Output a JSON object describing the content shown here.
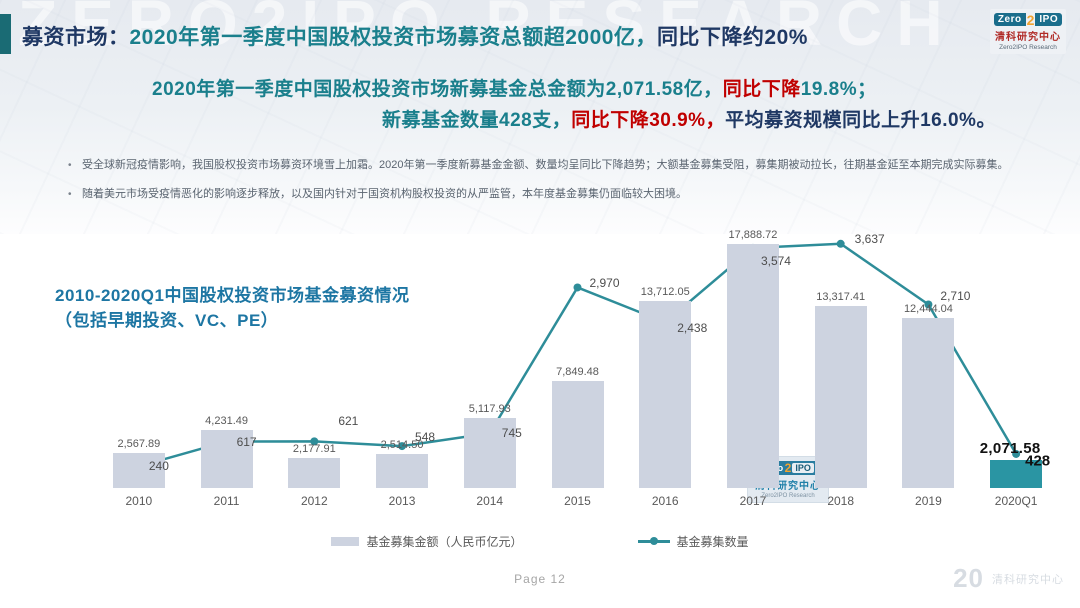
{
  "page": {
    "watermark": "ZERO2IPO RESEARCH",
    "title_prefix": "募资市场：",
    "title_main": "2020年第一季度中国股权投资市场募资总额超2000亿，",
    "title_suffix": "同比下降约20%",
    "footer_page": "Page 12",
    "footer_brand_num": "20",
    "footer_brand_text": "清科研究中心"
  },
  "logo": {
    "zero": "Zero",
    "two": "2",
    "ipo": "IPO",
    "cn": "清科研究中心",
    "en": "Zero2IPO Research"
  },
  "subtitle": {
    "line1": [
      {
        "text": "2020年第一季度中国股权投资市场新募基金总金额为2,071.58亿，",
        "color": "teal"
      },
      {
        "text": "同比下降",
        "color": "red"
      },
      {
        "text": "19.8%",
        "color": "teal"
      },
      {
        "text": "；",
        "color": "teal"
      }
    ],
    "line2": [
      {
        "text": "新募基金数量428支，",
        "color": "teal"
      },
      {
        "text": "同比下降30.9%，",
        "color": "red"
      },
      {
        "text": "平均募资规模同比上升16.0%。",
        "color": "navy"
      }
    ]
  },
  "bullets": [
    "受全球新冠疫情影响，我国股权投资市场募资环境雪上加霜。2020年第一季度新募基金金额、数量均呈同比下降趋势；大额基金募集受阻，募集期被动拉长，往期基金延至本期完成实际募集。",
    "随着美元市场受疫情恶化的影响逐步释放，以及国内针对于国资机构股权投资的从严监管，本年度基金募集仍面临较大困境。"
  ],
  "chart_data": {
    "type": "bar",
    "title": "2010-2020Q1中国股权投资市场基金募资情况",
    "subtitle": "（包括早期投资、VC、PE）",
    "categories": [
      "2010",
      "2011",
      "2012",
      "2013",
      "2014",
      "2015",
      "2016",
      "2017",
      "2018",
      "2019",
      "2020Q1"
    ],
    "series": [
      {
        "name": "基金募集金额（人民币亿元）",
        "type": "bar",
        "values": [
          2567.89,
          4231.49,
          2177.91,
          2514.5,
          5117.93,
          7849.48,
          13712.05,
          17888.72,
          13317.41,
          12444.04,
          2071.58
        ],
        "labels": [
          "2,567.89",
          "4,231.49",
          "2,177.91",
          "2,514.50",
          "5,117.93",
          "7,849.48",
          "13,712.05",
          "17,888.72",
          "13,317.41",
          "12,444.04",
          "2,071.58"
        ]
      },
      {
        "name": "基金募集数量",
        "type": "line",
        "values": [
          240,
          617,
          621,
          548,
          745,
          2970,
          2438,
          3574,
          3637,
          2710,
          428
        ],
        "labels": [
          "240",
          "617",
          "621",
          "548",
          "745",
          "2,970",
          "2,438",
          "3,574",
          "3,637",
          "2,710",
          "428"
        ]
      }
    ],
    "highlight_index": 10,
    "legend_position": "bottom",
    "grid": false,
    "colors": {
      "bar": "#cdd3e0",
      "bar_highlight": "#2a95a3",
      "line": "#2e8d99"
    }
  }
}
